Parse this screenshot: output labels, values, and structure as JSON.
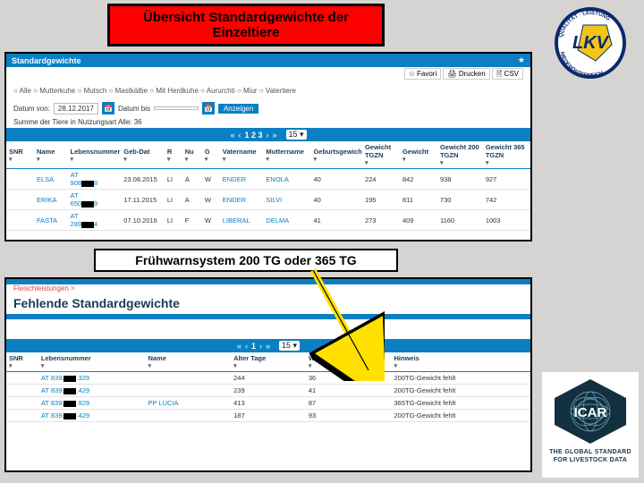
{
  "banner1_line1": "Übersicht Standardgewichte der",
  "banner1_line2": "Einzeltiere",
  "banner2": "Frühwarnsystem 200 TG oder 365 TG",
  "panel1": {
    "title": "Standardgewichte",
    "star": "★",
    "actions": {
      "favori": "☆ Favori",
      "drucken": "🖨 Drucken",
      "csv": "🗎 CSV"
    },
    "filter_prefix": "○ Alle ○ Mutterkuhe ○ Mutsch ○ Mastkälbe ○ Mit Herdkuhe ○ Aururchti ○ Miur ○ Vatertiere",
    "date_label_from": "Datum von:",
    "date_value": "28.12.2017",
    "date_label_to": "Datum bis",
    "btn_go": "Anzeigen",
    "sumline": "Summe der Tiere in Nutzungsart Alle: 36",
    "pager": {
      "first": "«",
      "prev": "‹",
      "pages": "1 2 3",
      "next": "›",
      "last": "»",
      "size": "15",
      "caret": "▾"
    },
    "columns": [
      "SNR",
      "Name",
      "Lebensnummer",
      "Geb-Dat",
      "R",
      "Nu",
      "G",
      "Vatername",
      "Muttername",
      "Geburtsgewicht",
      "Gewicht\nTGZN",
      "Gewicht",
      "Gewicht 200\nTGZN",
      "Gewicht 365\nTGZN"
    ],
    "rows": [
      {
        "snr": "",
        "name": "ELSA",
        "ln_pre": "AT",
        "ln_num": "908",
        "ln_suf": "8",
        "dob": "23.08.2015",
        "r": "LI",
        "nu": "A",
        "g": "W",
        "vater": "ENDER",
        "mutter": "ENOLA",
        "gg": "40",
        "g1": "224",
        "g2": "842",
        "g200": "938",
        "g365": "927"
      },
      {
        "snr": "",
        "name": "ERIKA",
        "ln_pre": "AT",
        "ln_num": "650",
        "ln_suf": "9",
        "dob": "17.11.2015",
        "r": "LI",
        "nu": "A",
        "g": "W",
        "vater": "ENDER",
        "mutter": "SILVI",
        "gg": "40",
        "g1": "195",
        "g2": "811",
        "g200": "730",
        "g365": "742"
      },
      {
        "snr": "",
        "name": "FASTA",
        "ln_pre": "AT",
        "ln_num": "289",
        "ln_suf": "4",
        "dob": "07.10.2016",
        "r": "LI",
        "nu": "F",
        "g": "W",
        "vater": "LIBERAL",
        "mutter": "DELMA",
        "gg": "41",
        "g1": "273",
        "g2": "409",
        "g200": "1160",
        "g365": "1003"
      }
    ]
  },
  "panel2": {
    "crumb": "Fleischleistungen >",
    "title": "Fehlende Standardgewichte",
    "pager": {
      "first": "«",
      "prev": "‹",
      "pages": "1",
      "next": "›",
      "last": "»",
      "size": "15",
      "caret": "▾"
    },
    "columns": [
      "SNR",
      "Lebensnummer",
      "Name",
      "Alter Tage",
      "Wiegefenster",
      "Hinweis"
    ],
    "rows": [
      {
        "snr": "",
        "ln_pre": "AT 839.",
        "ln_suf": ".329",
        "name": "",
        "alter": "244",
        "wf": "36",
        "hin": "200TG-Gewicht fehlt"
      },
      {
        "snr": "",
        "ln_pre": "AT 839.",
        "ln_suf": ".429",
        "name": "",
        "alter": "239",
        "wf": "41",
        "hin": "200TG-Gewicht fehlt"
      },
      {
        "snr": "",
        "ln_pre": "AT 839.",
        "ln_suf": ".929",
        "name": "PP LUCIA",
        "alter": "413",
        "wf": "87",
        "hin": "365TG-Gewicht fehlt"
      },
      {
        "snr": "",
        "ln_pre": "AT 839.",
        "ln_suf": ".429",
        "name": "",
        "alter": "187",
        "wf": "93",
        "hin": "200TG-Gewicht fehlt"
      }
    ]
  },
  "lkv": {
    "top": "QUALITÄT · LEISTUNG",
    "name": "LKV",
    "region": "NIEDERÖSTERREICH"
  },
  "icar": {
    "name": "ICAR",
    "line1": "THE GLOBAL STANDARD",
    "line2": "FOR LIVESTOCK DATA"
  }
}
